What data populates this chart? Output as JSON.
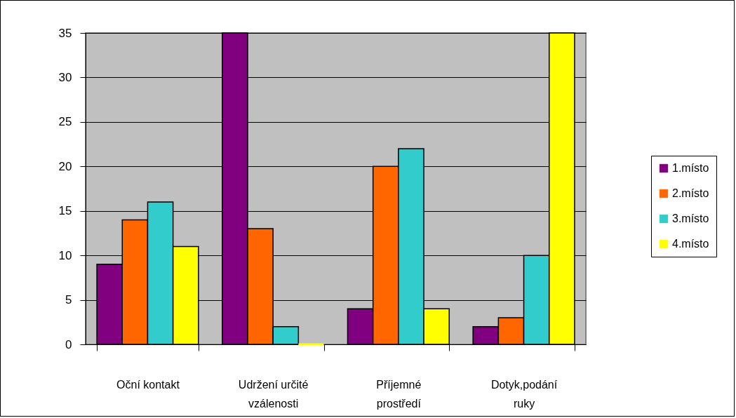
{
  "chart_data": {
    "type": "bar",
    "categories": [
      "Oční kontakt",
      "Udržení určité vzálenosti",
      "Příjemné prostředí",
      "Dotyk,podání ruky"
    ],
    "series": [
      {
        "name": "1.místo",
        "color": "#800080",
        "values": [
          9,
          35,
          4,
          2
        ]
      },
      {
        "name": "2.místo",
        "color": "#ff6600",
        "values": [
          14,
          13,
          20,
          3
        ]
      },
      {
        "name": "3.místo",
        "color": "#33cccc",
        "values": [
          16,
          2,
          22,
          10
        ]
      },
      {
        "name": "4.místo",
        "color": "#ffff00",
        "values": [
          11,
          0,
          4,
          35
        ]
      }
    ],
    "ylim": [
      0,
      35
    ],
    "yticks": [
      0,
      5,
      10,
      15,
      20,
      25,
      30,
      35
    ],
    "grid": "y",
    "legend": "right"
  }
}
